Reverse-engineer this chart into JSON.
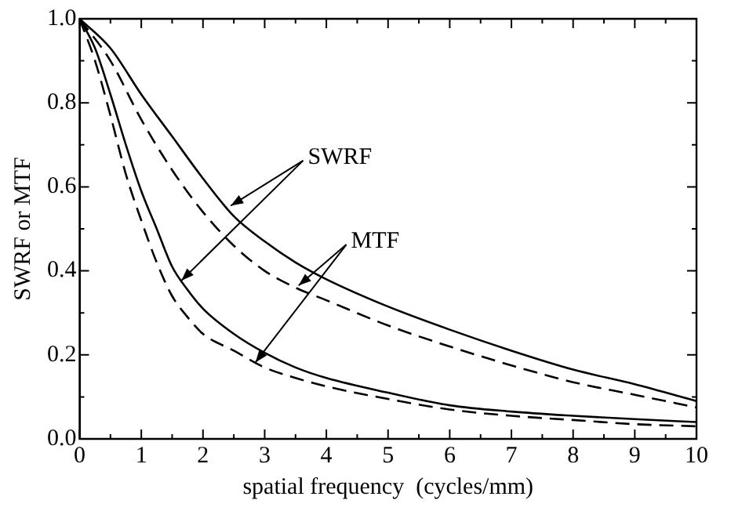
{
  "chart_data": {
    "type": "line",
    "xlabel": "spatial frequency  (cycles/mm)",
    "ylabel": "SWRF or MTF",
    "xlim": [
      0,
      10
    ],
    "ylim": [
      0,
      1
    ],
    "xticks": [
      0,
      {
        "value": 0.5,
        "label": null
      },
      1,
      {
        "value": 1.5,
        "label": null
      },
      2,
      {
        "value": 2.5,
        "label": null
      },
      3,
      {
        "value": 3.5,
        "label": null
      },
      4,
      {
        "value": 4.5,
        "label": null
      },
      5,
      {
        "value": 5.5,
        "label": null
      },
      6,
      {
        "value": 6.5,
        "label": null
      },
      7,
      {
        "value": 7.5,
        "label": null
      },
      8,
      {
        "value": 8.5,
        "label": null
      },
      9,
      {
        "value": 9.5,
        "label": null
      },
      10
    ],
    "yticks": [
      {
        "value": 0,
        "label": "0.0"
      },
      {
        "value": 0.1,
        "label": null
      },
      {
        "value": 0.2,
        "label": "0.2"
      },
      {
        "value": 0.3,
        "label": null
      },
      {
        "value": 0.4,
        "label": "0.4"
      },
      {
        "value": 0.5,
        "label": null
      },
      {
        "value": 0.6,
        "label": "0.6"
      },
      {
        "value": 0.7,
        "label": null
      },
      {
        "value": 0.8,
        "label": "0.8"
      },
      {
        "value": 0.9,
        "label": null
      },
      {
        "value": 1,
        "label": "1.0"
      }
    ],
    "grid": false,
    "legend": false,
    "marker": "none",
    "annotations": [
      {
        "text": "SWRF",
        "x": 2.45,
        "y": 0.555
      },
      {
        "text": "MTF",
        "x": 3.55,
        "y": 0.365
      }
    ],
    "series": [
      {
        "color": "#000000",
        "line_style": "solid",
        "x": [
          0,
          0.5,
          1,
          1.5,
          2,
          2.5,
          3,
          3.5,
          4,
          5,
          6,
          7,
          8,
          9,
          10
        ],
        "values": [
          1,
          0.93,
          0.82,
          0.72,
          0.62,
          0.53,
          0.47,
          0.42,
          0.38,
          0.315,
          0.26,
          0.21,
          0.165,
          0.13,
          0.09
        ]
      },
      {
        "color": "#000000",
        "line_style": "dashed",
        "x": [
          0,
          0.5,
          1,
          1.5,
          2,
          2.5,
          3,
          3.5,
          4,
          5,
          6,
          7,
          8,
          9,
          10
        ],
        "values": [
          1,
          0.9,
          0.76,
          0.64,
          0.54,
          0.46,
          0.4,
          0.36,
          0.33,
          0.27,
          0.22,
          0.175,
          0.135,
          0.105,
          0.075
        ]
      },
      {
        "color": "#000000",
        "line_style": "solid",
        "x": [
          0,
          0.25,
          0.5,
          0.75,
          1,
          1.25,
          1.5,
          1.75,
          2,
          2.5,
          3,
          3.5,
          4,
          5,
          6,
          7,
          8,
          9,
          10
        ],
        "values": [
          1,
          0.93,
          0.82,
          0.7,
          0.59,
          0.5,
          0.41,
          0.355,
          0.31,
          0.25,
          0.205,
          0.17,
          0.145,
          0.11,
          0.08,
          0.065,
          0.055,
          0.047,
          0.04
        ]
      },
      {
        "color": "#000000",
        "line_style": "dashed",
        "x": [
          0,
          0.25,
          0.5,
          0.75,
          1,
          1.25,
          1.5,
          1.75,
          2,
          2.5,
          3,
          3.5,
          4,
          5,
          6,
          7,
          8,
          9,
          10
        ],
        "values": [
          1,
          0.9,
          0.77,
          0.63,
          0.52,
          0.42,
          0.34,
          0.29,
          0.25,
          0.21,
          0.17,
          0.145,
          0.125,
          0.095,
          0.07,
          0.055,
          0.045,
          0.035,
          0.03
        ]
      }
    ]
  }
}
